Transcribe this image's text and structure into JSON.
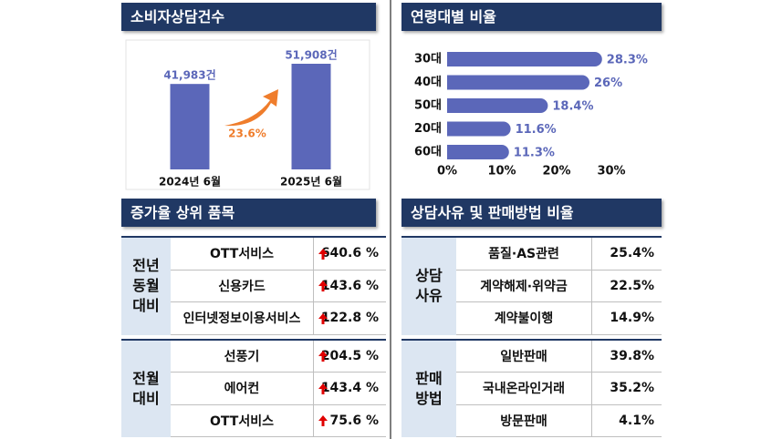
{
  "chart_data": [
    {
      "type": "bar",
      "title": "소비자상담건수",
      "categories": [
        "2024년 6월",
        "2025년 6월"
      ],
      "values": [
        41983,
        51908
      ],
      "value_labels": [
        "41,983건",
        "51,908건"
      ],
      "color": "#5b67b9",
      "annotation": "23.6%",
      "annotation_color": "#ef7d2c"
    },
    {
      "type": "hbar",
      "title": "연령대별 비율",
      "categories": [
        "30대",
        "40대",
        "50대",
        "20대",
        "60대"
      ],
      "values": [
        28.3,
        26,
        18.4,
        11.6,
        11.3
      ],
      "value_labels": [
        "28.3%",
        "26%",
        "18.4%",
        "11.6%",
        "11.3%"
      ],
      "color": "#5b67b9",
      "xlim": [
        0,
        30
      ],
      "xticks": [
        {
          "value": 0,
          "label": "0%"
        },
        {
          "value": 10,
          "label": "10%"
        },
        {
          "value": 20,
          "label": "20%"
        },
        {
          "value": 30,
          "label": "30%"
        }
      ]
    }
  ],
  "tables": [
    {
      "title": "증가율 상위 품목",
      "groups": [
        {
          "label": "전년\n동월\n대비",
          "rows": [
            [
              "OTT서비스",
              "640.6 %"
            ],
            [
              "신용카드",
              "143.6 %"
            ],
            [
              "인터넷정보이용서비스",
              "122.8 %"
            ]
          ]
        },
        {
          "label": "전월\n대비",
          "rows": [
            [
              "선풍기",
              "204.5 %"
            ],
            [
              "에어컨",
              "143.4 %"
            ],
            [
              "OTT서비스",
              "75.6 %"
            ]
          ]
        }
      ]
    },
    {
      "title": "상담사유 및 판매방법 비율",
      "groups": [
        {
          "label": "상담\n사유",
          "rows": [
            [
              "품질·AS관련",
              "25.4%"
            ],
            [
              "계약해제·위약금",
              "22.5%"
            ],
            [
              "계약불이행",
              "14.9%"
            ]
          ]
        },
        {
          "label": "판매\n방법",
          "rows": [
            [
              "일반판매",
              "39.8%"
            ],
            [
              "국내온라인거래",
              "35.2%"
            ],
            [
              "방문판매",
              "4.1%"
            ]
          ]
        }
      ]
    }
  ]
}
